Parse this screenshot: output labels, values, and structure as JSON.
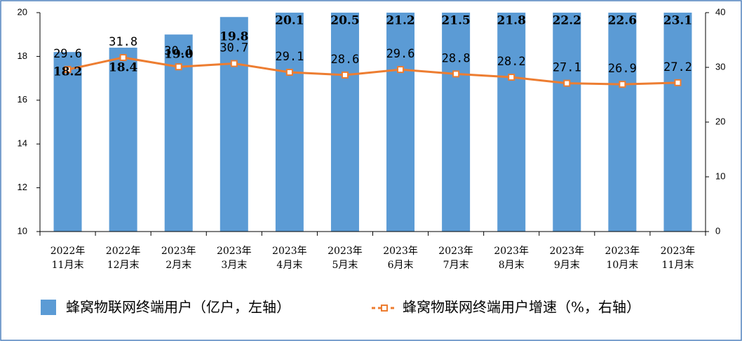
{
  "chart_data": {
    "type": "bar-line",
    "categories": [
      [
        "2022年",
        "11月末"
      ],
      [
        "2022年",
        "12月末"
      ],
      [
        "2023年",
        "2月末"
      ],
      [
        "2023年",
        "3月末"
      ],
      [
        "2023年",
        "4月末"
      ],
      [
        "2023年",
        "5月末"
      ],
      [
        "2023年",
        "6月末"
      ],
      [
        "2023年",
        "7月末"
      ],
      [
        "2023年",
        "8月末"
      ],
      [
        "2023年",
        "9月末"
      ],
      [
        "2023年",
        "10月末"
      ],
      [
        "2023年",
        "11月末"
      ]
    ],
    "series": [
      {
        "name": "蜂窝物联网终端用户（亿户，左轴）",
        "type": "bar",
        "color": "#5b9bd5",
        "values": [
          18.2,
          18.4,
          19.0,
          19.8,
          20.1,
          20.5,
          21.2,
          21.5,
          21.8,
          22.2,
          22.6,
          23.1
        ],
        "value_labels": [
          "18.2",
          "18.4",
          "19.0",
          "19.8",
          "20.1",
          "20.5",
          "21.2",
          "21.5",
          "21.8",
          "22.2",
          "22.6",
          "23.1"
        ]
      },
      {
        "name": "蜂窝物联网终端用户增速（%，右轴）",
        "type": "line",
        "axis": "y2",
        "color": "#ed7d31",
        "values": [
          29.6,
          31.8,
          30.1,
          30.7,
          29.1,
          28.6,
          29.6,
          28.8,
          28.2,
          27.1,
          26.9,
          27.2
        ]
      }
    ],
    "ylim": [
      10,
      20
    ],
    "yticks": [
      10,
      12,
      14,
      16,
      18,
      20
    ],
    "y2lim": [
      0,
      40
    ],
    "y2ticks": [
      0,
      10,
      20,
      30,
      40
    ]
  }
}
